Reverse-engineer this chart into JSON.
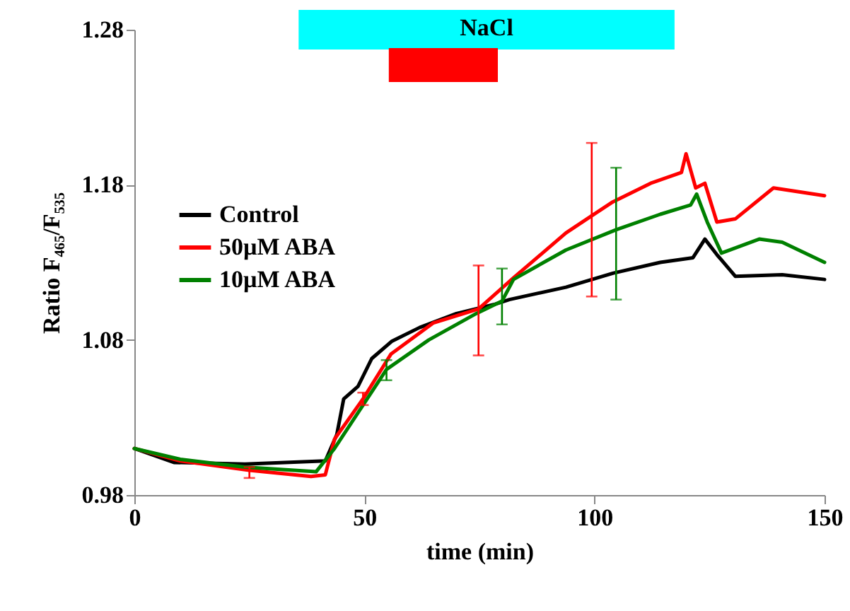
{
  "chart_data": {
    "type": "line",
    "xlabel": "time (min)",
    "ylabel": "Ratio F₄₆₅/F₅₃₅",
    "xlim": [
      0,
      150
    ],
    "xticks": [
      0,
      50,
      100,
      150
    ],
    "ylim": [
      0.98,
      1.28
    ],
    "yticks": [
      0.98,
      1.08,
      1.18,
      1.28
    ],
    "grid": false,
    "legend": "left",
    "marker": "none",
    "line_style": "solid",
    "bands": [
      {
        "axis": "x",
        "from": 35.7,
        "to": 117.4,
        "label": "NaCl",
        "color": "#00ffff"
      },
      {
        "axis": "x",
        "from": 55.3,
        "to": 79,
        "color": "#ff0000"
      }
    ],
    "series": [
      {
        "name": "Control",
        "color": "#000000",
        "x": [
          0,
          8.6,
          24,
          41.5,
          44,
          45.5,
          48.6,
          51.6,
          55.9,
          62,
          70,
          78.4,
          81.5,
          93.8,
          104,
          114.3,
          121.4,
          124,
          126.6,
          130.6,
          140.8,
          150
        ],
        "values": [
          1.01,
          1.001,
          1.0,
          1.002,
          1.019,
          1.042,
          1.05,
          1.068,
          1.079,
          1.088,
          1.097,
          1.103,
          1.106,
          1.114,
          1.123,
          1.13,
          1.133,
          1.145,
          1.135,
          1.121,
          1.122,
          1.119
        ]
      },
      {
        "name": "50µM ABA",
        "color": "#ff0000",
        "x": [
          0,
          10,
          25,
          38.4,
          41.5,
          43.5,
          49.7,
          55.8,
          65,
          74.8,
          82.4,
          93.8,
          99.4,
          104,
          112.2,
          118.9,
          119.9,
          122,
          124,
          126.6,
          130.6,
          138.9,
          150
        ],
        "values": [
          1.01,
          1.002,
          0.996,
          0.992,
          0.993,
          1.016,
          1.042,
          1.071,
          1.091,
          1.1,
          1.12,
          1.149,
          1.16,
          1.169,
          1.181,
          1.188,
          1.2,
          1.178,
          1.181,
          1.156,
          1.158,
          1.178,
          1.173
        ],
        "errors": [
          null,
          null,
          [
            0.991,
            0.998
          ],
          null,
          null,
          null,
          [
            1.038,
            1.046
          ],
          null,
          null,
          [
            1.07,
            1.128
          ],
          null,
          null,
          [
            1.108,
            1.207
          ],
          null,
          null,
          null,
          null,
          null,
          null,
          null,
          null,
          null,
          null
        ]
      },
      {
        "name": "10µM ABA",
        "color": "#008000",
        "x": [
          0,
          10,
          24,
          39.5,
          43.5,
          49.7,
          54.8,
          64,
          74.3,
          79.9,
          82.4,
          93.8,
          104.7,
          114.3,
          120.9,
          122.2,
          124.5,
          127.6,
          135.8,
          140.8,
          150
        ],
        "values": [
          1.01,
          1.003,
          0.998,
          0.995,
          1.01,
          1.038,
          1.061,
          1.08,
          1.097,
          1.105,
          1.119,
          1.138,
          1.151,
          1.161,
          1.167,
          1.174,
          1.156,
          1.136,
          1.145,
          1.143,
          1.13
        ],
        "errors": [
          null,
          null,
          null,
          null,
          null,
          null,
          [
            1.054,
            1.067
          ],
          null,
          null,
          [
            1.09,
            1.126
          ],
          null,
          null,
          [
            1.106,
            1.191
          ],
          null,
          null,
          null,
          null,
          null,
          null,
          null,
          null
        ]
      }
    ]
  }
}
